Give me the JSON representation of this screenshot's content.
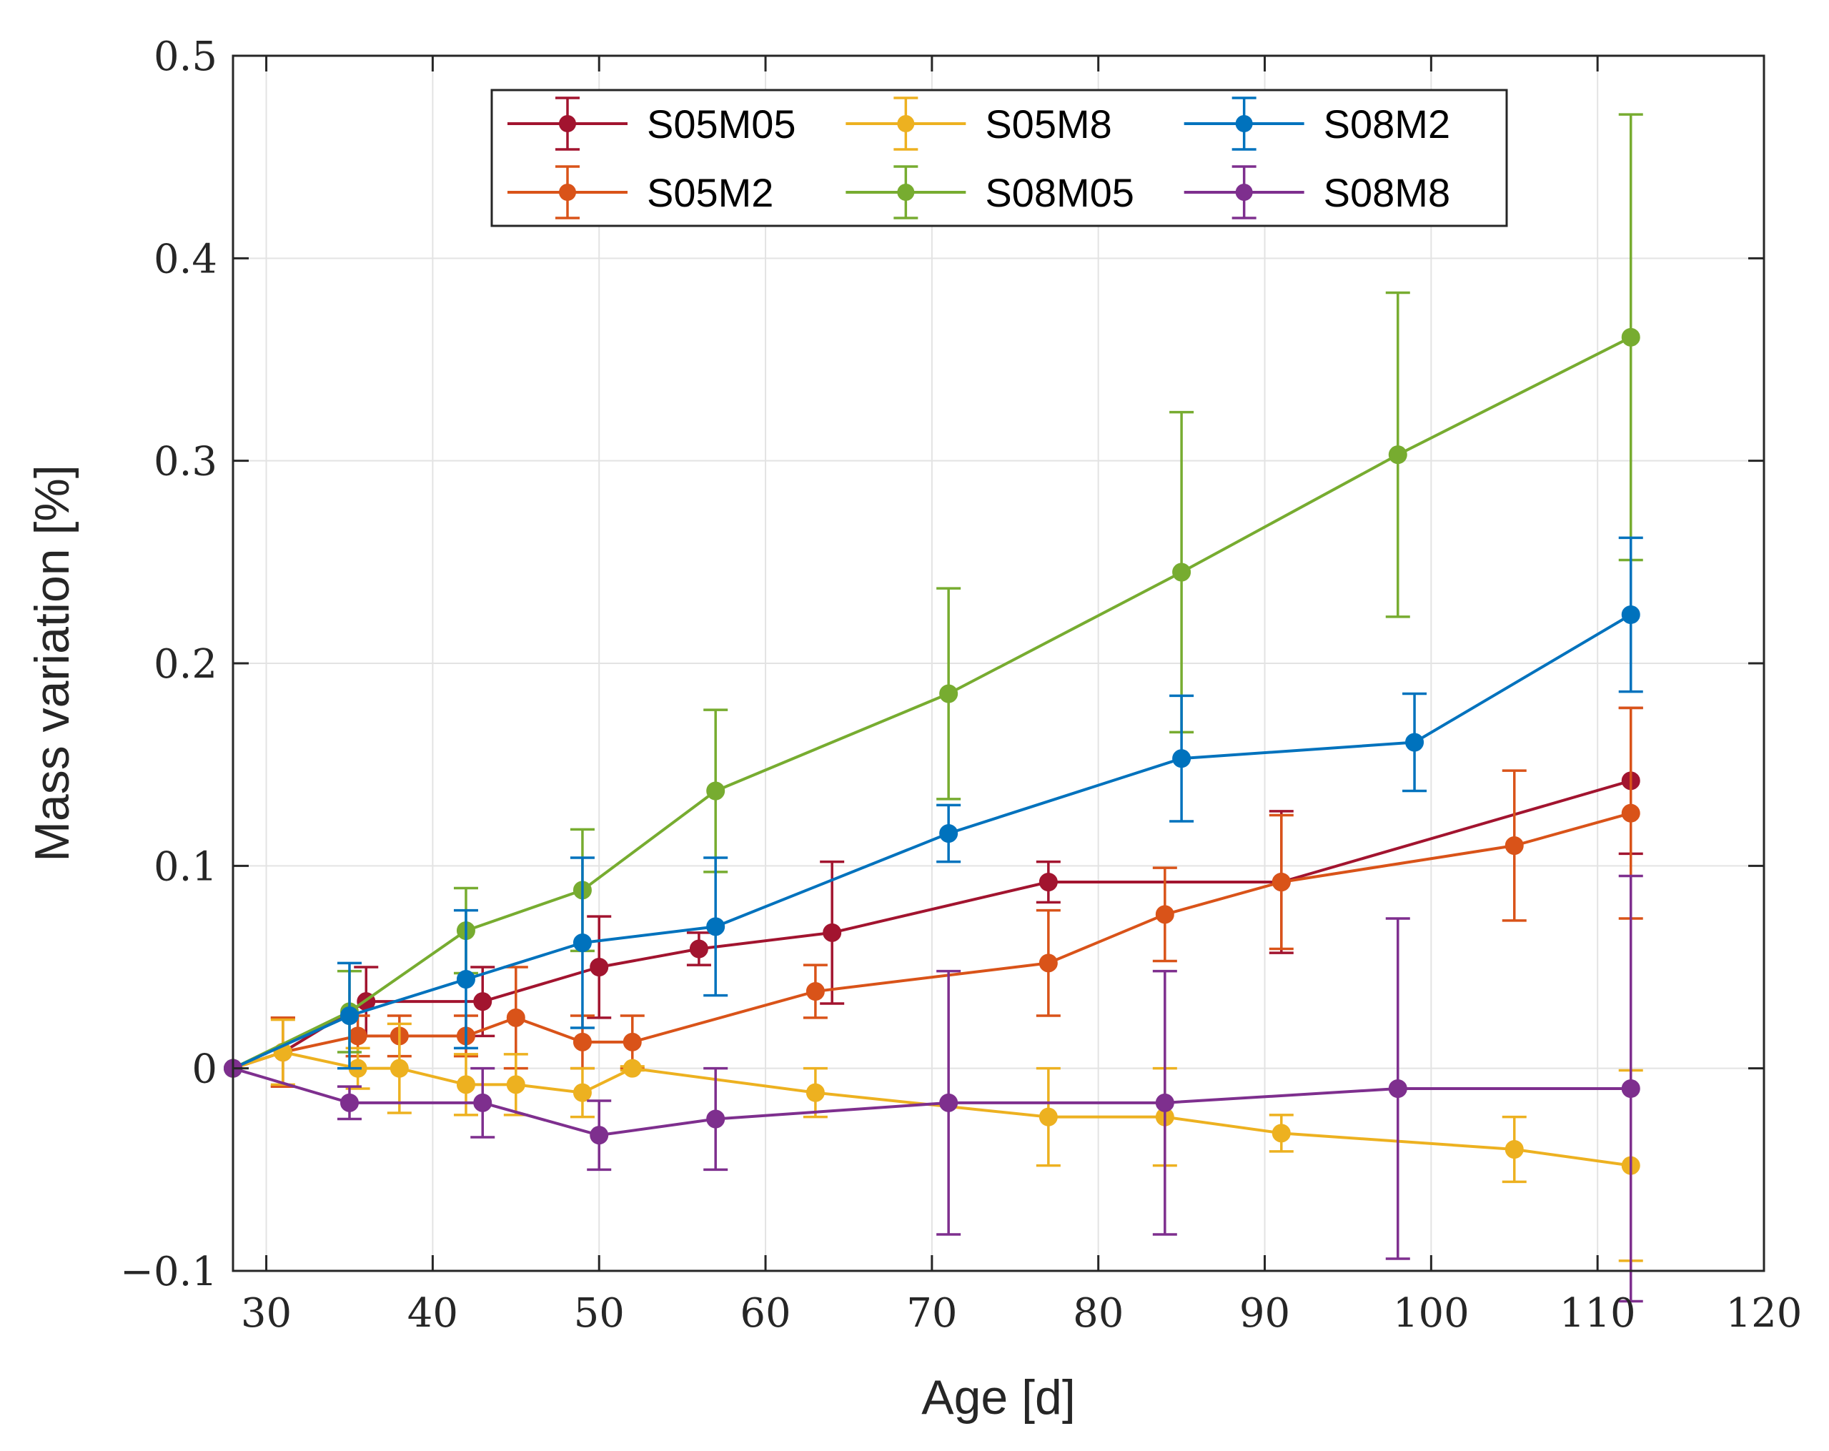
{
  "chart_data": {
    "type": "line",
    "error_bars": true,
    "title": "",
    "xlabel": "Age [d]",
    "ylabel": "Mass variation [%]",
    "xlim": [
      28,
      120
    ],
    "ylim": [
      -0.1,
      0.5
    ],
    "xticks": [
      30,
      40,
      50,
      60,
      70,
      80,
      90,
      100,
      110,
      120
    ],
    "xtick_labels": [
      "30",
      "40",
      "50",
      "60",
      "70",
      "80",
      "90",
      "100",
      "110",
      "120"
    ],
    "yticks": [
      -0.1,
      0,
      0.1,
      0.2,
      0.3,
      0.4,
      0.5
    ],
    "ytick_labels": [
      "−0.1",
      "0",
      "0.1",
      "0.2",
      "0.3",
      "0.4",
      "0.5"
    ],
    "grid": true,
    "legend_position": "top-center",
    "legend_columns": 3,
    "series": [
      {
        "name": "S05M05",
        "color": "#A2142F",
        "x": [
          28,
          31,
          36,
          43,
          50,
          56,
          64,
          77,
          91,
          112
        ],
        "y": [
          0,
          0.008,
          0.033,
          0.033,
          0.05,
          0.059,
          0.067,
          0.092,
          0.092,
          0.142
        ],
        "err": [
          0,
          0.017,
          0.017,
          0.017,
          0.025,
          0.008,
          0.035,
          0.01,
          0.035,
          0.036
        ]
      },
      {
        "name": "S05M2",
        "color": "#D95319",
        "x": [
          28,
          31,
          35.5,
          38,
          42,
          45,
          49,
          52,
          63,
          77,
          84,
          91,
          105,
          112
        ],
        "y": [
          0,
          0.008,
          0.016,
          0.016,
          0.016,
          0.025,
          0.013,
          0.013,
          0.038,
          0.052,
          0.076,
          0.092,
          0.11,
          0.126
        ],
        "err": [
          0,
          0.017,
          0.01,
          0.01,
          0.01,
          0.025,
          0.013,
          0.013,
          0.013,
          0.026,
          0.023,
          0.033,
          0.037,
          0.052
        ]
      },
      {
        "name": "S05M8",
        "color": "#EDB120",
        "x": [
          28,
          31,
          35.5,
          38,
          42,
          45,
          49,
          52,
          63,
          77,
          84,
          91,
          105,
          112
        ],
        "y": [
          0,
          0.008,
          0,
          0,
          -0.008,
          -0.008,
          -0.012,
          0,
          -0.012,
          -0.024,
          -0.024,
          -0.032,
          -0.04,
          -0.048
        ],
        "err": [
          0,
          0.016,
          0.01,
          0.022,
          0.015,
          0.015,
          0.012,
          0.001,
          0.012,
          0.024,
          0.024,
          0.009,
          0.016,
          0.047
        ]
      },
      {
        "name": "S08M05",
        "color": "#77AC30",
        "x": [
          28,
          35,
          42,
          49,
          57,
          71,
          85,
          98,
          112
        ],
        "y": [
          0,
          0.028,
          0.068,
          0.088,
          0.137,
          0.185,
          0.245,
          0.303,
          0.361
        ],
        "err": [
          0,
          0.02,
          0.021,
          0.03,
          0.04,
          0.052,
          0.079,
          0.08,
          0.11
        ]
      },
      {
        "name": "S08M2",
        "color": "#0072BD",
        "x": [
          28,
          35,
          42,
          49,
          57,
          71,
          85,
          99,
          112
        ],
        "y": [
          0,
          0.026,
          0.044,
          0.062,
          0.07,
          0.116,
          0.153,
          0.161,
          0.224
        ],
        "err": [
          0,
          0.026,
          0.034,
          0.042,
          0.034,
          0.014,
          0.031,
          0.024,
          0.038
        ]
      },
      {
        "name": "S08M8",
        "color": "#7E2F8E",
        "x": [
          28,
          35,
          43,
          50,
          57,
          71,
          84,
          98,
          112
        ],
        "y": [
          0,
          -0.017,
          -0.017,
          -0.033,
          -0.025,
          -0.017,
          -0.017,
          -0.01,
          -0.01
        ],
        "err": [
          0,
          0.008,
          0.017,
          0.017,
          0.025,
          0.065,
          0.065,
          0.084,
          0.105
        ]
      }
    ]
  }
}
